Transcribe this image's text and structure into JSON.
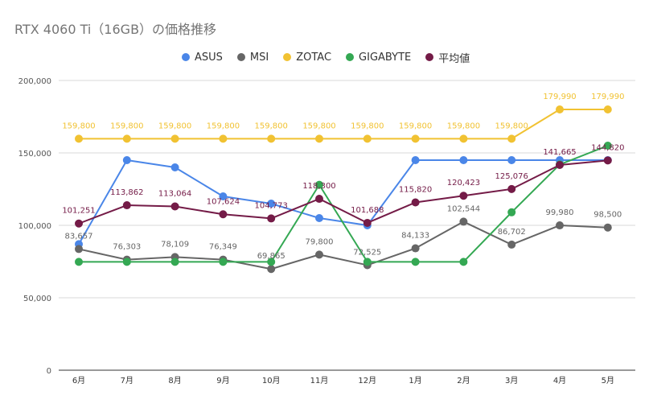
{
  "chart_data": {
    "type": "line",
    "title": "RTX 4060 Ti（16GB）の価格推移",
    "categories": [
      "6月",
      "7月",
      "8月",
      "9月",
      "10月",
      "11月",
      "12月",
      "1月",
      "2月",
      "3月",
      "4月",
      "5月"
    ],
    "ylim": [
      0,
      200000
    ],
    "yticks": [
      "0",
      "50,000",
      "100,000",
      "150,000",
      "200,000"
    ],
    "grid": "horizontal",
    "legend_position": "top",
    "series": [
      {
        "name": "ASUS",
        "color": "#4a86e8",
        "values": [
          87000,
          145000,
          140000,
          120000,
          115000,
          105000,
          100000,
          145000,
          145000,
          145000,
          145000,
          145000
        ],
        "labels": [
          "",
          "",
          "",
          "",
          "",
          "",
          "",
          "",
          "",
          "",
          "",
          ""
        ]
      },
      {
        "name": "MSI",
        "color": "#666666",
        "values": [
          83657,
          76303,
          78109,
          76349,
          69865,
          79800,
          72525,
          84133,
          102544,
          86702,
          99980,
          98500
        ],
        "labels": [
          "83,657",
          "76,303",
          "78,109",
          "76,349",
          "69,865",
          "79,800",
          "72,525",
          "84,133",
          "102,544",
          "86,702",
          "99,980",
          "98,500"
        ]
      },
      {
        "name": "ZOTAC",
        "color": "#f1c232",
        "values": [
          159800,
          159800,
          159800,
          159800,
          159800,
          159800,
          159800,
          159800,
          159800,
          159800,
          179990,
          179990
        ],
        "labels": [
          "159,800",
          "159,800",
          "159,800",
          "159,800",
          "159,800",
          "159,800",
          "159,800",
          "159,800",
          "159,800",
          "159,800",
          "179,990",
          "179,990"
        ]
      },
      {
        "name": "GIGABYTE",
        "color": "#34a853",
        "values": [
          74800,
          74800,
          74800,
          74800,
          74800,
          128000,
          74800,
          74800,
          74800,
          109000,
          142000,
          155000
        ],
        "labels": [
          "",
          "",
          "",
          "",
          "",
          "",
          "",
          "",
          "",
          "",
          "",
          ""
        ]
      },
      {
        "name": "平均値",
        "color": "#741b47",
        "values": [
          101251,
          113862,
          113064,
          107624,
          104773,
          118300,
          101688,
          115820,
          120423,
          125076,
          141665,
          144820
        ],
        "labels": [
          "101,251",
          "113,862",
          "113,064",
          "107,624",
          "104,773",
          "118,300",
          "101,688",
          "115,820",
          "120,423",
          "125,076",
          "141,665",
          "144,820"
        ]
      }
    ]
  }
}
